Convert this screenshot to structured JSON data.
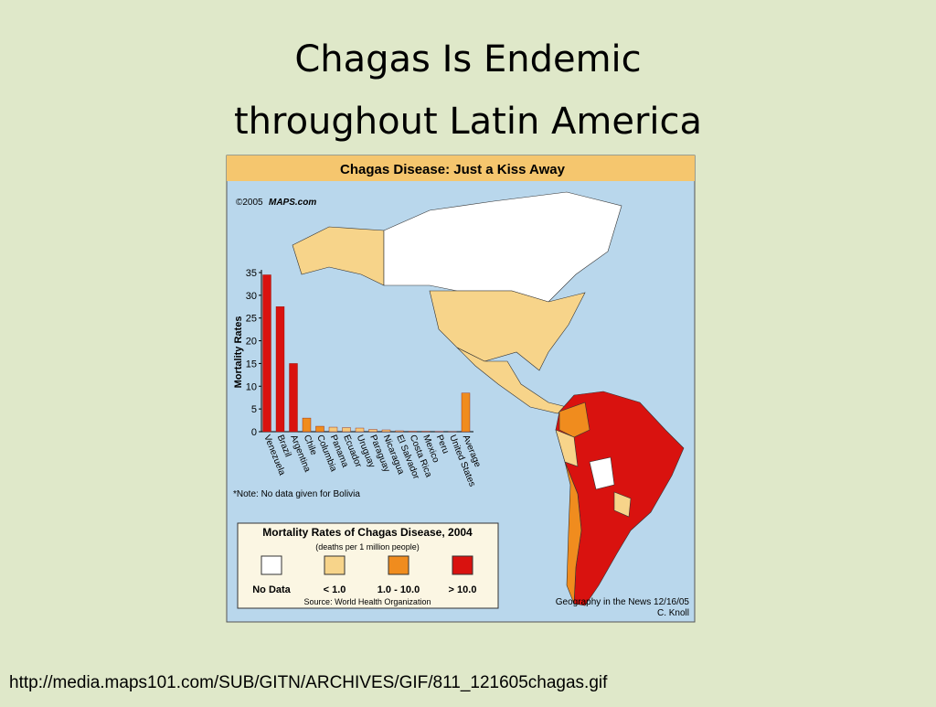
{
  "slide": {
    "title_lines": [
      "Chagas Is Endemic",
      "throughout Latin America"
    ],
    "source_url": "http://media.maps101.com/SUB/GITN/ARCHIVES/GIF/811_121605chagas.gif"
  },
  "figure": {
    "banner": "Chagas Disease: Just a Kiss Away",
    "copyright": "©2005",
    "logo": "MAPS.com",
    "note": "*Note: No data given for Bolivia",
    "legend": {
      "title": "Mortality Rates of Chagas Disease, 2004",
      "subtitle": "(deaths per 1 million people)",
      "items": [
        "No Data",
        "< 1.0",
        "1.0 - 10.0",
        "> 10.0"
      ],
      "source": "Source: World Health Organization"
    },
    "credit": [
      "Geography in the News 12/16/05",
      "C. Knoll"
    ]
  },
  "chart_data": {
    "type": "bar",
    "y_label": "Mortality Rates",
    "categories": [
      "Venezuela",
      "Brazil",
      "Argentina",
      "Chile",
      "Columbia",
      "Panama",
      "Ecuador",
      "Uruguay",
      "Paraguay",
      "Nicaragua",
      "El Salvador",
      "Costa Rica",
      "Mexico",
      "Peru",
      "United States",
      "Average"
    ],
    "values": [
      34.5,
      27.5,
      15,
      3,
      1.2,
      1,
      0.9,
      0.8,
      0.5,
      0.4,
      0.2,
      0.1,
      0.1,
      0.05,
      0.02,
      8.5
    ],
    "colors": [
      "#d9120f",
      "#d9120f",
      "#d9120f",
      "#f08c1e",
      "#f08c1e",
      "#f7c97a",
      "#f7c97a",
      "#f7c97a",
      "#f7c97a",
      "#f7c97a",
      "#f7c97a",
      "#f7c97a",
      "#f7c97a",
      "#f7c97a",
      "#f7c97a",
      "#f08c1e"
    ],
    "ylim": [
      0,
      35
    ],
    "yticks": [
      0,
      5,
      10,
      15,
      20,
      25,
      30,
      35
    ]
  }
}
